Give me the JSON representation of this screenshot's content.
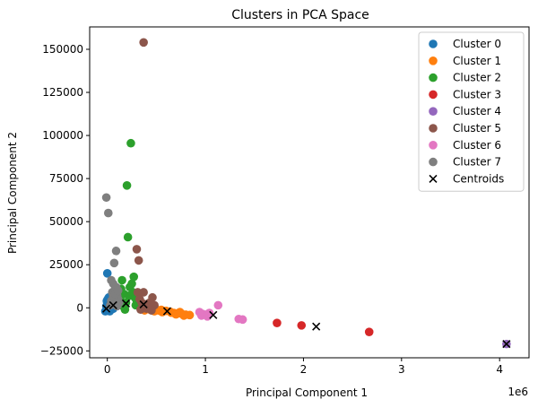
{
  "chart_data": {
    "type": "scatter",
    "title": "Clusters in PCA Space",
    "xlabel": "Principal Component 1",
    "ylabel": "Principal Component 2",
    "x_offset_label": "1e6",
    "xlim": [
      -180000,
      4300000
    ],
    "ylim": [
      -29000,
      163000
    ],
    "x_ticks": [
      0,
      1000000,
      2000000,
      3000000,
      4000000
    ],
    "x_tick_labels": [
      "0",
      "1",
      "2",
      "3",
      "4"
    ],
    "y_ticks": [
      -25000,
      0,
      25000,
      50000,
      75000,
      100000,
      125000,
      150000
    ],
    "y_tick_labels": [
      "−25000",
      "0",
      "25000",
      "50000",
      "75000",
      "100000",
      "125000",
      "150000"
    ],
    "grid": false,
    "legend_position": "top-right",
    "series": [
      {
        "name": "Cluster 0",
        "color": "#1f77b4",
        "points": [
          [
            -20000,
            -2000
          ],
          [
            -10000,
            1000
          ],
          [
            0,
            3000
          ],
          [
            10000,
            -1000
          ],
          [
            20000,
            2000
          ],
          [
            30000,
            4000
          ],
          [
            40000,
            0
          ],
          [
            50000,
            1500
          ],
          [
            60000,
            -500
          ],
          [
            5000,
            5000
          ],
          [
            15000,
            6000
          ],
          [
            25000,
            -2000
          ],
          [
            -5000,
            4000
          ],
          [
            0,
            20000
          ],
          [
            35000,
            2500
          ]
        ]
      },
      {
        "name": "Cluster 1",
        "color": "#ff7f0e",
        "points": [
          [
            380000,
            -1500
          ],
          [
            430000,
            -800
          ],
          [
            480000,
            -2000
          ],
          [
            520000,
            -1500
          ],
          [
            560000,
            -2500
          ],
          [
            600000,
            -1800
          ],
          [
            640000,
            -2200
          ],
          [
            680000,
            -3000
          ],
          [
            720000,
            -3200
          ],
          [
            760000,
            -3500
          ],
          [
            800000,
            -4000
          ],
          [
            840000,
            -4200
          ],
          [
            450000,
            -500
          ],
          [
            500000,
            -1000
          ],
          [
            550000,
            -1200
          ],
          [
            650000,
            -2800
          ],
          [
            700000,
            -3800
          ],
          [
            740000,
            -2500
          ],
          [
            780000,
            -4500
          ]
        ]
      },
      {
        "name": "Cluster 2",
        "color": "#2ca02c",
        "points": [
          [
            100000,
            2000
          ],
          [
            130000,
            5000
          ],
          [
            150000,
            16000
          ],
          [
            170000,
            8000
          ],
          [
            190000,
            3000
          ],
          [
            200000,
            71000
          ],
          [
            210000,
            41000
          ],
          [
            230000,
            12000
          ],
          [
            240000,
            95500
          ],
          [
            250000,
            14000
          ],
          [
            270000,
            18000
          ],
          [
            280000,
            6000
          ],
          [
            300000,
            4000
          ],
          [
            160000,
            1000
          ],
          [
            220000,
            7000
          ],
          [
            260000,
            9000
          ],
          [
            140000,
            11000
          ],
          [
            180000,
            -1000
          ],
          [
            290000,
            1500
          ],
          [
            120000,
            3500
          ]
        ]
      },
      {
        "name": "Cluster 3",
        "color": "#d62728",
        "points": [
          [
            1730000,
            -8800
          ],
          [
            1980000,
            -10200
          ],
          [
            2670000,
            -14000
          ]
        ]
      },
      {
        "name": "Cluster 4",
        "color": "#9467bd",
        "points": [
          [
            4070000,
            -21000
          ]
        ]
      },
      {
        "name": "Cluster 5",
        "color": "#8c564b",
        "points": [
          [
            370000,
            154000
          ],
          [
            300000,
            34000
          ],
          [
            320000,
            27500
          ],
          [
            310000,
            9000
          ],
          [
            330000,
            5000
          ],
          [
            350000,
            3000
          ],
          [
            370000,
            9000
          ],
          [
            390000,
            2000
          ],
          [
            410000,
            1000
          ],
          [
            430000,
            3000
          ],
          [
            460000,
            6000
          ],
          [
            480000,
            1500
          ],
          [
            340000,
            -1000
          ],
          [
            400000,
            -500
          ],
          [
            450000,
            -1500
          ]
        ]
      },
      {
        "name": "Cluster 6",
        "color": "#e377c2",
        "points": [
          [
            940000,
            -2500
          ],
          [
            970000,
            -3500
          ],
          [
            1000000,
            -4000
          ],
          [
            1040000,
            -3000
          ],
          [
            1130000,
            1500
          ],
          [
            1340000,
            -6500
          ],
          [
            1380000,
            -6800
          ],
          [
            960000,
            -4500
          ],
          [
            1020000,
            -5000
          ]
        ]
      },
      {
        "name": "Cluster 7",
        "color": "#7f7f7f",
        "points": [
          [
            -10000,
            64000
          ],
          [
            10000,
            55000
          ],
          [
            40000,
            16000
          ],
          [
            60000,
            14000
          ],
          [
            70000,
            26000
          ],
          [
            90000,
            33000
          ],
          [
            80000,
            11000
          ],
          [
            50000,
            9000
          ],
          [
            100000,
            7000
          ],
          [
            110000,
            5000
          ],
          [
            120000,
            3000
          ],
          [
            70000,
            2000
          ],
          [
            90000,
            12000
          ],
          [
            40000,
            4000
          ],
          [
            60000,
            6500
          ],
          [
            80000,
            8000
          ],
          [
            110000,
            10000
          ],
          [
            30000,
            1500
          ],
          [
            100000,
            1000
          ]
        ]
      },
      {
        "name": "Centroids",
        "color": "#000000",
        "marker": "x",
        "points": [
          [
            -10000,
            -500
          ],
          [
            60000,
            1500
          ],
          [
            190000,
            2500
          ],
          [
            2130000,
            -10900
          ],
          [
            4070000,
            -21000
          ],
          [
            370000,
            2000
          ],
          [
            1080000,
            -4200
          ],
          [
            610000,
            -2000
          ]
        ]
      }
    ]
  }
}
